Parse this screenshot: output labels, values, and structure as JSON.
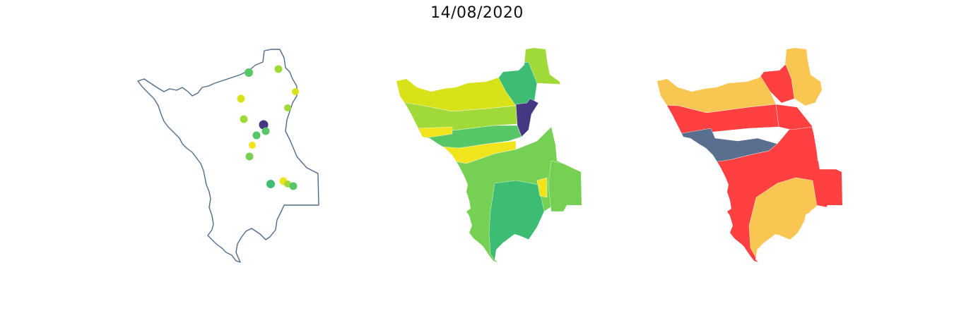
{
  "figure": {
    "title": "14/08/2020"
  },
  "colors": {
    "outline": "#4f6b88",
    "viridis": {
      "dark_purple": "#453781",
      "green_dark": "#3dbc74",
      "green": "#56c667",
      "green_light": "#75d054",
      "lime": "#a0da39",
      "yellow_green": "#d8e219",
      "yellow": "#f0e51c"
    },
    "risk": {
      "red": "#ff4040",
      "orange": "#f9c651",
      "slate": "#58708d"
    }
  },
  "panels": [
    {
      "name": "stations-map",
      "style": "outline-with-points",
      "points": [
        {
          "color": "#56c667"
        },
        {
          "color": "#a0da39"
        },
        {
          "color": "#d8e219"
        },
        {
          "color": "#d8e219"
        },
        {
          "color": "#a0da39"
        },
        {
          "color": "#a0da39"
        },
        {
          "color": "#453781"
        },
        {
          "color": "#56c667"
        },
        {
          "color": "#56c667"
        },
        {
          "color": "#f0e51c"
        },
        {
          "color": "#75d054"
        },
        {
          "color": "#3dbc74"
        },
        {
          "color": "#f0e51c"
        },
        {
          "color": "#a0da39"
        },
        {
          "color": "#56c667"
        }
      ]
    },
    {
      "name": "interpolated-map",
      "style": "choropleth",
      "regions": [
        {
          "name": "region-north-tip",
          "color": "#a0da39"
        },
        {
          "name": "region-north-center",
          "color": "#3dbc74"
        },
        {
          "name": "region-west-band",
          "color": "#d8e219"
        },
        {
          "name": "region-west-mid",
          "color": "#a0da39"
        },
        {
          "name": "region-center-highlight",
          "color": "#453781"
        },
        {
          "name": "region-west-strip",
          "color": "#56c667"
        },
        {
          "name": "region-yellow-band",
          "color": "#f0e51c"
        },
        {
          "name": "region-south-main",
          "color": "#75d054"
        },
        {
          "name": "region-south-core",
          "color": "#3dbc74"
        },
        {
          "name": "region-east-panhandle",
          "color": "#75d054"
        },
        {
          "name": "region-east-small",
          "color": "#f0e51c"
        }
      ]
    },
    {
      "name": "classification-map",
      "style": "choropleth",
      "regions": [
        {
          "name": "class-north-orange",
          "color": "#f9c651"
        },
        {
          "name": "class-north-red",
          "color": "#ff4040"
        },
        {
          "name": "class-west-orange",
          "color": "#f9c651"
        },
        {
          "name": "class-center-red",
          "color": "#ff4040"
        },
        {
          "name": "class-slate-band",
          "color": "#58708d"
        },
        {
          "name": "class-south-red",
          "color": "#ff4040"
        },
        {
          "name": "class-south-orange",
          "color": "#f9c651"
        },
        {
          "name": "class-east-red",
          "color": "#ff4040"
        }
      ]
    }
  ]
}
